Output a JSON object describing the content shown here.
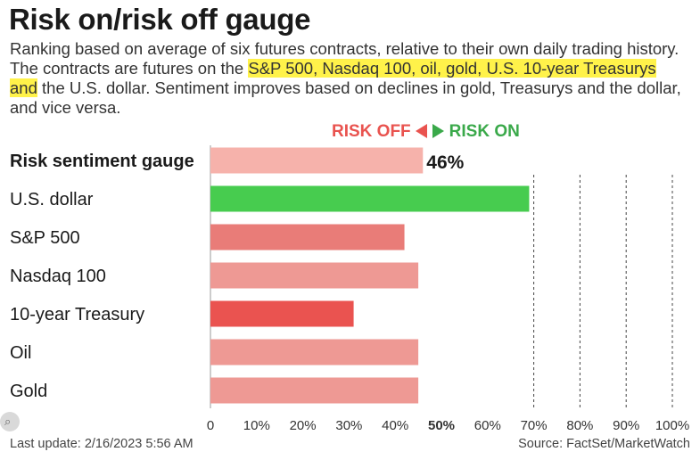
{
  "header": {
    "title": "Risk on/risk off gauge",
    "subtitle_parts": [
      "Ranking based on average of six futures contracts, relative to their own daily trading history. The contracts are futures on the ",
      "S&P 500, Nasdaq 100, oil, gold, U.S. 10-year Treasurys and",
      " the U.S. dollar. Sentiment improves based on declines in gold, Treasurys and the dollar, and vice versa."
    ]
  },
  "legend": {
    "risk_off": "RISK OFF",
    "risk_on": "RISK ON"
  },
  "colors": {
    "highlight": "#fff24a",
    "risk_off": "#e9534f",
    "risk_on": "#3aa94a"
  },
  "chart_data": {
    "type": "bar",
    "orientation": "horizontal",
    "categories": [
      "Risk sentiment gauge",
      "U.S. dollar",
      "S&P 500",
      "Nasdaq 100",
      "10-year Treasury",
      "Oil",
      "Gold"
    ],
    "values": [
      46,
      69,
      42,
      45,
      31,
      45,
      45
    ],
    "bar_colors": [
      "#f6b2ab",
      "#47cc4f",
      "#e97c78",
      "#ee9994",
      "#ea5350",
      "#ee9994",
      "#ee9994"
    ],
    "value_labels": [
      "46%",
      "",
      "",
      "",
      "",
      "",
      ""
    ],
    "xlim": [
      0,
      100
    ],
    "x_ticks": [
      "0",
      "10%",
      "20%",
      "30%",
      "40%",
      "50%",
      "60%",
      "70%",
      "80%",
      "90%",
      "100%"
    ],
    "grid": "dashed vertical lines at 70%, 80%, 90%, 100%",
    "title": "",
    "xlabel": "",
    "ylabel": ""
  },
  "footer": {
    "last_update": "Last update: 2/16/2023 5:56 AM",
    "source": "Source: FactSet/MarketWatch"
  }
}
